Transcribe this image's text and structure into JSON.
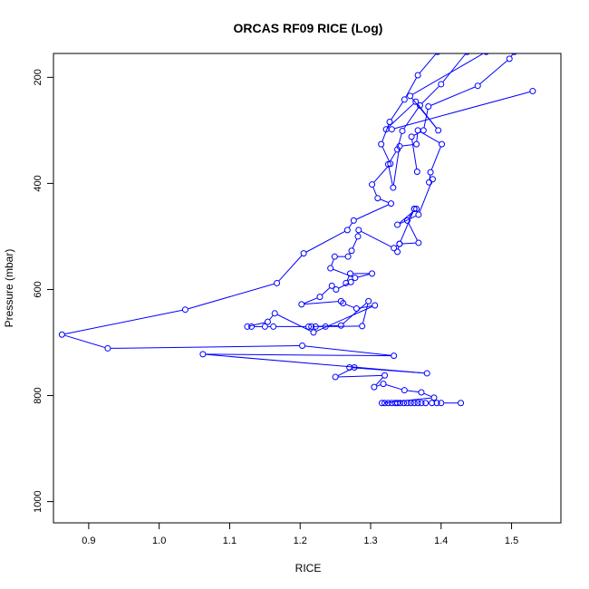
{
  "chart_data": {
    "type": "line",
    "title": "ORCAS RF09 RICE (Log)",
    "xlabel": "RICE",
    "ylabel": "Pressure (mbar)",
    "xlim": [
      0.85,
      1.57
    ],
    "ylim": [
      1040,
      155
    ],
    "y_inverted": true,
    "x_ticks": [
      0.9,
      1.0,
      1.1,
      1.2,
      1.3,
      1.4,
      1.5
    ],
    "y_ticks": [
      200,
      400,
      600,
      800,
      1000
    ],
    "grid": false,
    "legend": "none",
    "color": "#0000ff",
    "series": [
      {
        "points": [
          [
            1.428,
            814
          ],
          [
            1.4,
            814
          ],
          [
            1.394,
            814
          ],
          [
            1.387,
            814
          ],
          [
            1.378,
            814
          ],
          [
            1.372,
            814
          ],
          [
            1.367,
            814
          ],
          [
            1.362,
            814
          ],
          [
            1.357,
            814
          ],
          [
            1.352,
            814
          ],
          [
            1.347,
            814
          ],
          [
            1.342,
            814
          ],
          [
            1.338,
            814
          ],
          [
            1.335,
            814
          ],
          [
            1.33,
            814
          ],
          [
            1.325,
            814
          ],
          [
            1.32,
            814
          ],
          [
            1.316,
            814
          ],
          [
            1.39,
            804
          ],
          [
            1.372,
            794
          ],
          [
            1.348,
            790
          ],
          [
            1.318,
            778
          ],
          [
            1.305,
            784
          ],
          [
            1.32,
            762
          ],
          [
            1.25,
            765
          ],
          [
            1.277,
            747
          ],
          [
            1.27,
            747
          ],
          [
            1.38,
            758
          ],
          [
            1.062,
            722
          ],
          [
            1.333,
            725
          ],
          [
            1.203,
            706
          ],
          [
            0.927,
            711
          ],
          [
            0.862,
            685
          ],
          [
            1.037,
            638
          ],
          [
            1.167,
            588
          ],
          [
            1.205,
            532
          ],
          [
            1.267,
            488
          ],
          [
            1.276,
            470
          ],
          [
            1.329,
            438
          ],
          [
            1.31,
            428
          ],
          [
            1.302,
            402
          ],
          [
            1.328,
            363
          ],
          [
            1.315,
            326
          ],
          [
            1.327,
            284
          ],
          [
            1.348,
            242
          ],
          [
            1.367,
            196
          ],
          [
            1.395,
            152
          ]
        ]
      },
      {
        "points": [
          [
            1.222,
            670
          ],
          [
            1.236,
            670
          ],
          [
            1.288,
            669
          ],
          [
            1.297,
            622
          ],
          [
            1.258,
            668
          ],
          [
            1.216,
            670
          ],
          [
            1.212,
            670
          ],
          [
            1.162,
            670
          ],
          [
            1.15,
            670
          ],
          [
            1.131,
            670
          ],
          [
            1.125,
            670
          ],
          [
            1.154,
            661
          ],
          [
            1.164,
            645
          ],
          [
            1.219,
            681
          ],
          [
            1.306,
            630
          ],
          [
            1.28,
            636
          ],
          [
            1.261,
            626
          ],
          [
            1.258,
            622
          ],
          [
            1.202,
            628
          ],
          [
            1.228,
            614
          ],
          [
            1.245,
            593
          ],
          [
            1.251,
            600
          ],
          [
            1.272,
            586
          ],
          [
            1.265,
            588
          ],
          [
            1.271,
            570
          ],
          [
            1.302,
            570
          ],
          [
            1.278,
            578
          ],
          [
            1.243,
            560
          ],
          [
            1.249,
            538
          ],
          [
            1.268,
            538
          ],
          [
            1.273,
            527
          ],
          [
            1.282,
            500
          ],
          [
            1.283,
            488
          ],
          [
            1.333,
            522
          ],
          [
            1.341,
            514
          ],
          [
            1.368,
            512
          ],
          [
            1.352,
            470
          ],
          [
            1.362,
            448
          ],
          [
            1.365,
            448
          ],
          [
            1.338,
            478
          ],
          [
            1.368,
            459
          ],
          [
            1.388,
            392
          ],
          [
            1.383,
            398
          ],
          [
            1.385,
            379
          ],
          [
            1.401,
            326
          ],
          [
            1.367,
            300
          ],
          [
            1.365,
            326
          ],
          [
            1.341,
            330
          ],
          [
            1.332,
            408
          ],
          [
            1.325,
            364
          ],
          [
            1.338,
            336
          ],
          [
            1.345,
            301
          ],
          [
            1.37,
            253
          ],
          [
            1.4,
            213
          ],
          [
            1.437,
            152
          ]
        ]
      },
      {
        "points": [
          [
            1.366,
            378
          ],
          [
            1.358,
            312
          ],
          [
            1.375,
            300
          ],
          [
            1.382,
            255
          ],
          [
            1.452,
            216
          ],
          [
            1.497,
            165
          ],
          [
            1.504,
            152
          ]
        ]
      },
      {
        "points": [
          [
            1.33,
            298
          ],
          [
            1.53,
            226
          ]
        ]
      },
      {
        "points": [
          [
            1.322,
            298
          ],
          [
            1.364,
            246
          ],
          [
            1.396,
            300
          ],
          [
            1.356,
            235
          ],
          [
            1.464,
            152
          ]
        ]
      },
      {
        "points": [
          [
            1.338,
            529
          ],
          [
            1.341,
            514
          ],
          [
            1.362,
            448
          ]
        ]
      }
    ]
  }
}
